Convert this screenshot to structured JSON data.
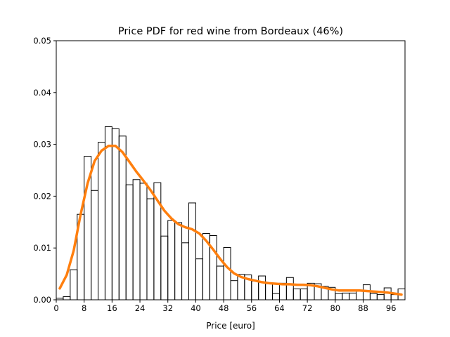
{
  "chart_data": {
    "type": "histogram_with_density",
    "title": "Price PDF for red wine from Bordeaux (46%)",
    "xlabel": "Price [euro]",
    "ylabel": "",
    "xlim": [
      0,
      100
    ],
    "ylim": [
      0,
      0.05
    ],
    "x_ticks": [
      0,
      8,
      16,
      24,
      32,
      40,
      48,
      56,
      64,
      72,
      80,
      88,
      96
    ],
    "x_tick_labels": [
      "0",
      "8",
      "16",
      "24",
      "32",
      "40",
      "48",
      "56",
      "64",
      "72",
      "80",
      "88",
      "96"
    ],
    "y_ticks": [
      0,
      0.01,
      0.02,
      0.03,
      0.04,
      0.05
    ],
    "y_tick_labels": [
      "0.00",
      "0.01",
      "0.02",
      "0.03",
      "0.04",
      "0.05"
    ],
    "grid": false,
    "legend": "none",
    "histogram": {
      "bin_width": 2,
      "bin_start": 0,
      "color": "#000000",
      "values": [
        0.0003,
        0.0006,
        0.0058,
        0.0165,
        0.0277,
        0.0211,
        0.0304,
        0.0334,
        0.033,
        0.0316,
        0.0222,
        0.0232,
        0.0225,
        0.0195,
        0.0226,
        0.0123,
        0.0153,
        0.0149,
        0.011,
        0.0187,
        0.0079,
        0.0128,
        0.0124,
        0.0065,
        0.0101,
        0.0037,
        0.0049,
        0.0048,
        0.0036,
        0.0046,
        0.0031,
        0.0012,
        0.0032,
        0.0043,
        0.0021,
        0.0021,
        0.0032,
        0.0031,
        0.0026,
        0.0024,
        0.0012,
        0.0013,
        0.0013,
        0.0019,
        0.0029,
        0.0012,
        0.001,
        0.0023,
        0.001,
        0.0021
      ]
    },
    "density": {
      "color": "#ff7f0e",
      "x": [
        1,
        3,
        5,
        7,
        9,
        11,
        13,
        15,
        17,
        19,
        21,
        23,
        25,
        27,
        29,
        31,
        33,
        35,
        37,
        39,
        41,
        43,
        45,
        47,
        49,
        51,
        53,
        55,
        57,
        59,
        61,
        63,
        65,
        67,
        69,
        71,
        73,
        75,
        77,
        79,
        81,
        83,
        85,
        87,
        89,
        91,
        93,
        95,
        97,
        99
      ],
      "y": [
        0.0022,
        0.0048,
        0.0095,
        0.0165,
        0.0225,
        0.0268,
        0.0288,
        0.0297,
        0.0297,
        0.0285,
        0.0266,
        0.0247,
        0.023,
        0.0212,
        0.0192,
        0.0172,
        0.0157,
        0.0146,
        0.014,
        0.0136,
        0.0128,
        0.0114,
        0.0097,
        0.0079,
        0.0063,
        0.0051,
        0.0044,
        0.004,
        0.0037,
        0.0034,
        0.0032,
        0.0031,
        0.003,
        0.003,
        0.0029,
        0.0029,
        0.0028,
        0.0026,
        0.0023,
        0.002,
        0.0018,
        0.0018,
        0.0018,
        0.0018,
        0.0017,
        0.0016,
        0.0015,
        0.0014,
        0.0012,
        0.001
      ]
    }
  }
}
